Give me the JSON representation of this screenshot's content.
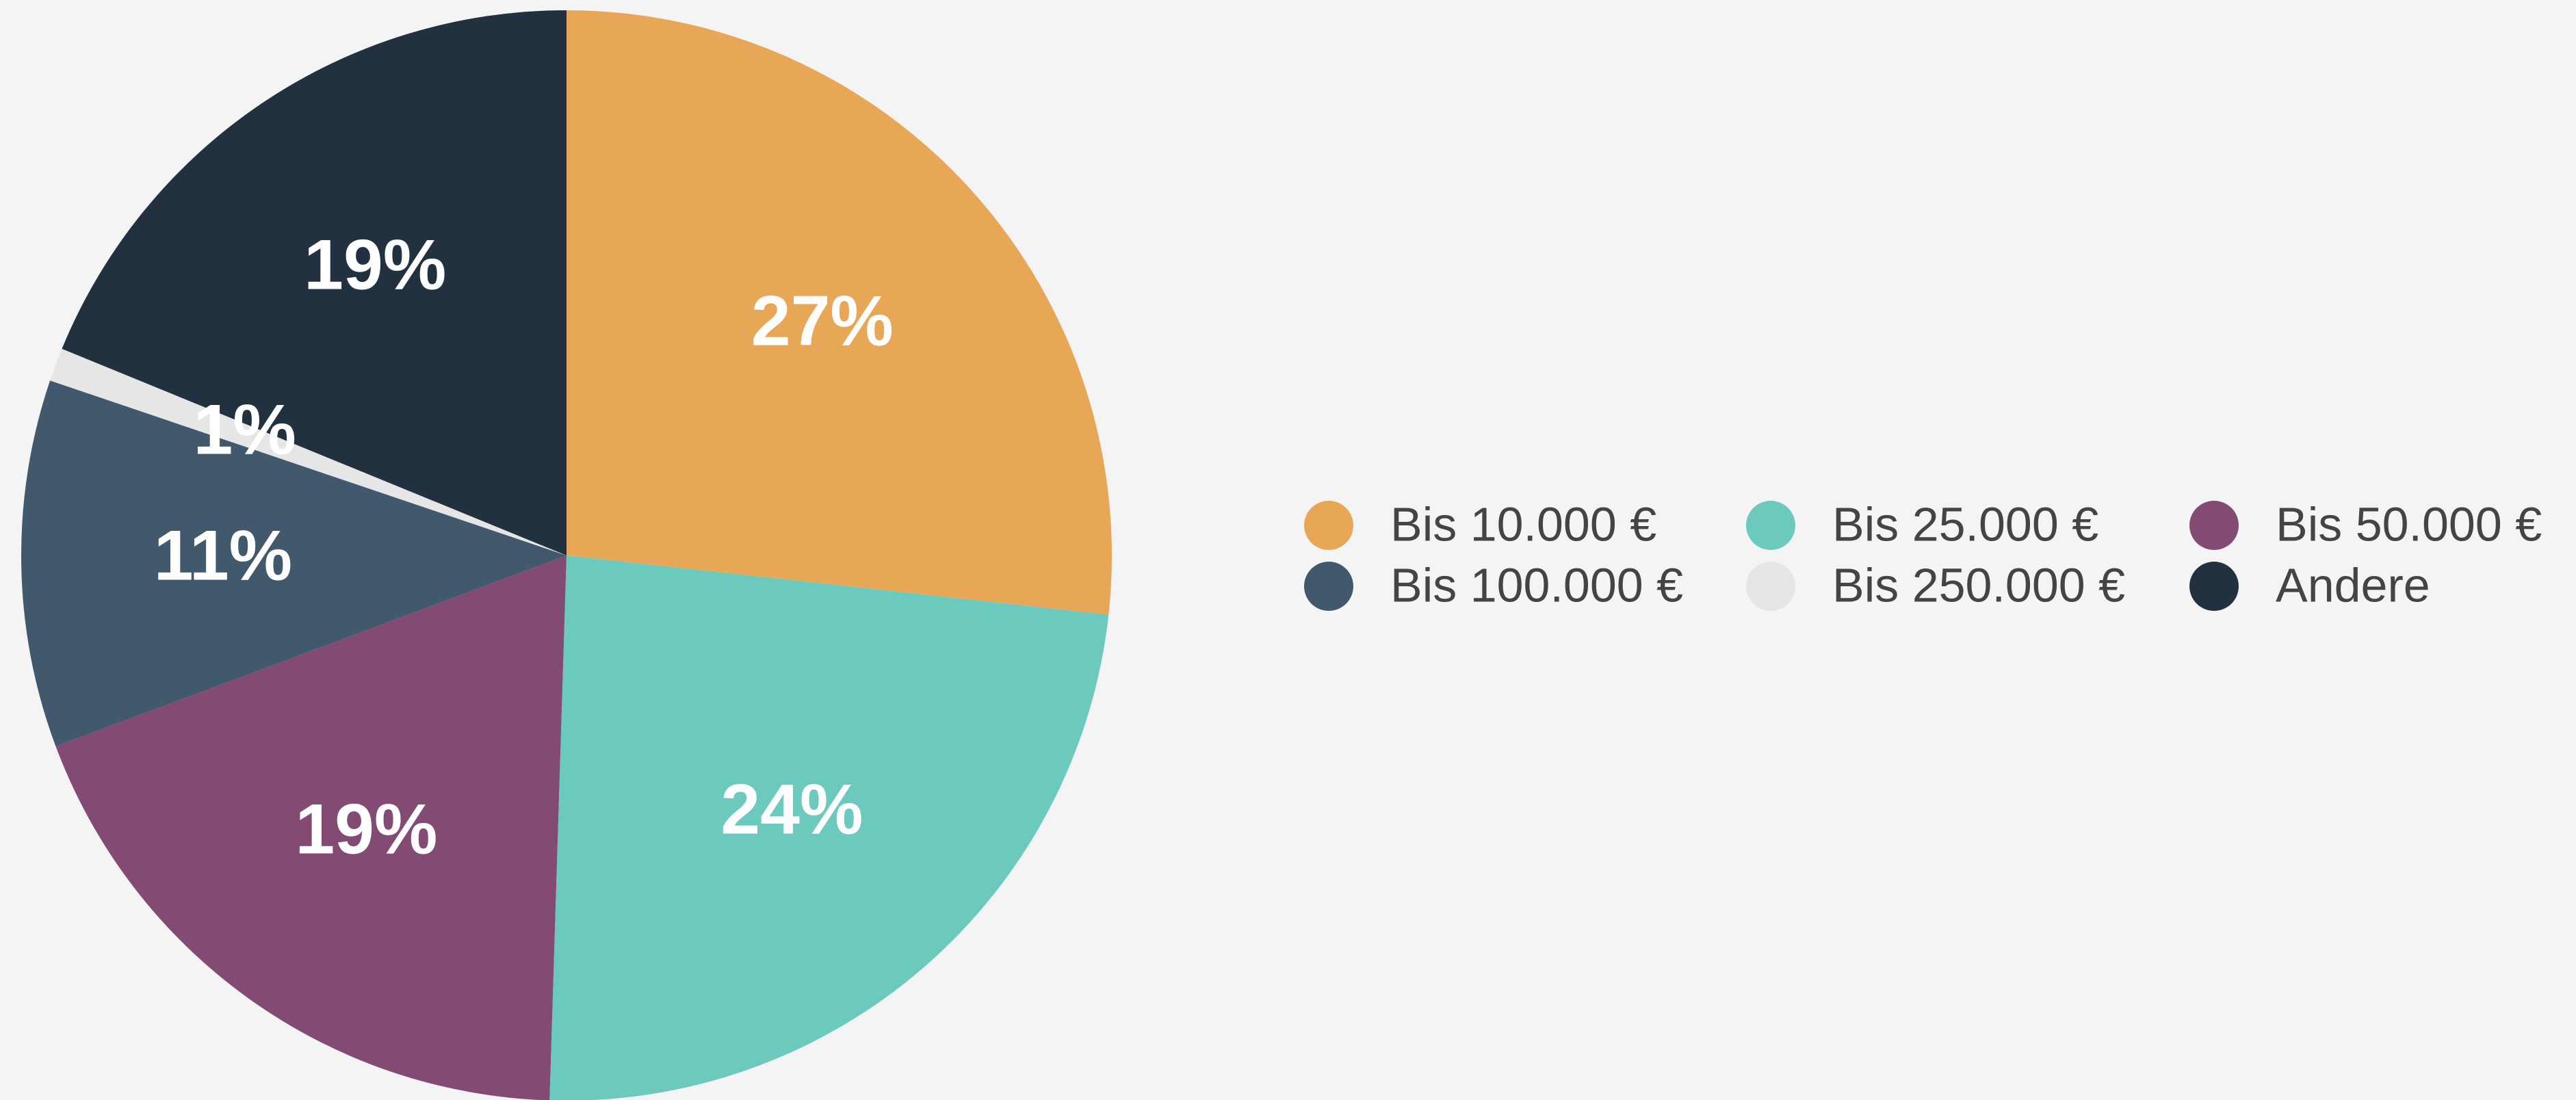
{
  "chart_data": {
    "type": "pie",
    "categories": [
      "Bis 10.000 €",
      "Bis 25.000 €",
      "Bis 50.000 €",
      "Bis 100.000 €",
      "Bis 250.000 €",
      "Andere"
    ],
    "values": [
      27,
      24,
      19,
      11,
      1,
      19
    ],
    "value_labels": [
      "27%",
      "24%",
      "19%",
      "11%",
      "1%",
      "19%"
    ],
    "colors": [
      "#e8a657",
      "#6cc9be",
      "#834a73",
      "#41586d",
      "#e6e6e6",
      "#223140"
    ],
    "legend": "right"
  }
}
